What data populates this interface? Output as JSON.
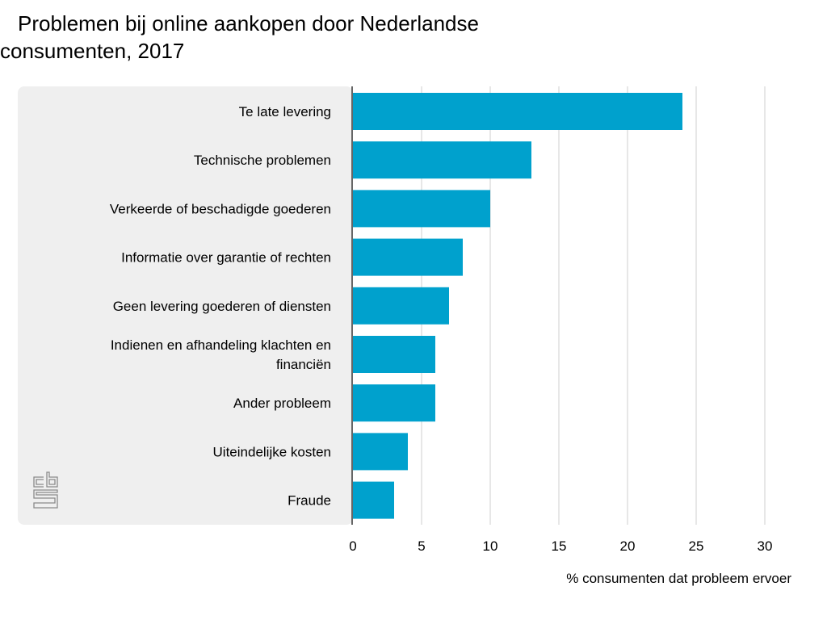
{
  "title": {
    "line1": "Problemen bij online aankopen door Nederlandse",
    "line2": "consumenten, 2017"
  },
  "logo": {
    "icon": "cbs-logo-icon",
    "text": "cbs"
  },
  "colors": {
    "bar": "#00a1cd",
    "panel": "#efefef",
    "grid": "#cfcfcf",
    "axis": "#666666"
  },
  "chart_data": {
    "type": "bar",
    "orientation": "horizontal",
    "title": "Problemen bij online aankopen door Nederlandse consumenten, 2017",
    "xlabel": "% consumenten dat probleem ervoer",
    "ylabel": "",
    "categories": [
      [
        "Te late levering"
      ],
      [
        "Technische problemen"
      ],
      [
        "Verkeerde of beschadigde goederen"
      ],
      [
        "Informatie over garantie of rechten"
      ],
      [
        "Geen levering goederen of diensten"
      ],
      [
        "Indienen en afhandeling klachten en",
        "financiën"
      ],
      [
        "Ander probleem"
      ],
      [
        "Uiteindelijke kosten"
      ],
      [
        "Fraude"
      ]
    ],
    "values": [
      24,
      13,
      10,
      8,
      7,
      6,
      6,
      4,
      3
    ],
    "xlim": [
      0,
      30
    ],
    "xticks": [
      0,
      5,
      10,
      15,
      20,
      25,
      30
    ],
    "grid": true,
    "legend": "none"
  }
}
